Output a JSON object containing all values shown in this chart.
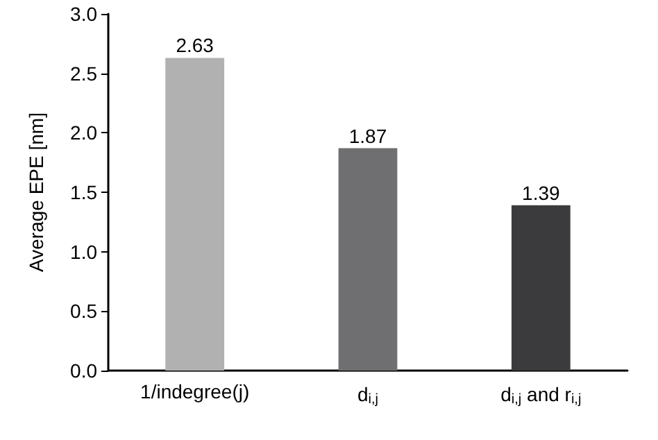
{
  "chart_data": {
    "type": "bar",
    "ylabel": "Average EPE [nm]",
    "categories": [
      "1/indegree(j)",
      "d$_{i,j}$",
      "d$_{i,j}$ and r$_{i,j}$"
    ],
    "values": [
      2.63,
      1.87,
      1.39
    ],
    "colors": [
      "#b1b1b1",
      "#6f6f71",
      "#3b3b3d"
    ],
    "ylim": [
      0,
      3
    ],
    "yticks": [
      {
        "value": 0,
        "label": "0.0"
      },
      {
        "value": 0.5,
        "label": "0.5"
      },
      {
        "value": 1,
        "label": "1.0"
      },
      {
        "value": 1.5,
        "label": "1.5"
      },
      {
        "value": 2,
        "label": "2.0"
      },
      {
        "value": 2.5,
        "label": "2.5"
      },
      {
        "value": 3,
        "label": "3.0"
      }
    ],
    "data_labels": true,
    "grid": false
  }
}
